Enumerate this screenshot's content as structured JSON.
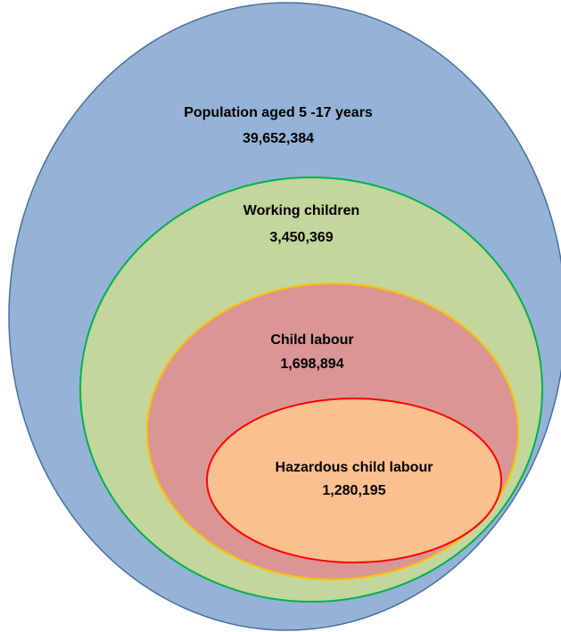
{
  "nodes": [
    {
      "label": "Population aged 5 -17 years",
      "value": "39,652,384"
    },
    {
      "label": "Working children",
      "value": "3,450,369"
    },
    {
      "label": "Child labour",
      "value": "1,698,894"
    },
    {
      "label": "Hazardous child labour",
      "value": "1,280,195"
    }
  ]
}
